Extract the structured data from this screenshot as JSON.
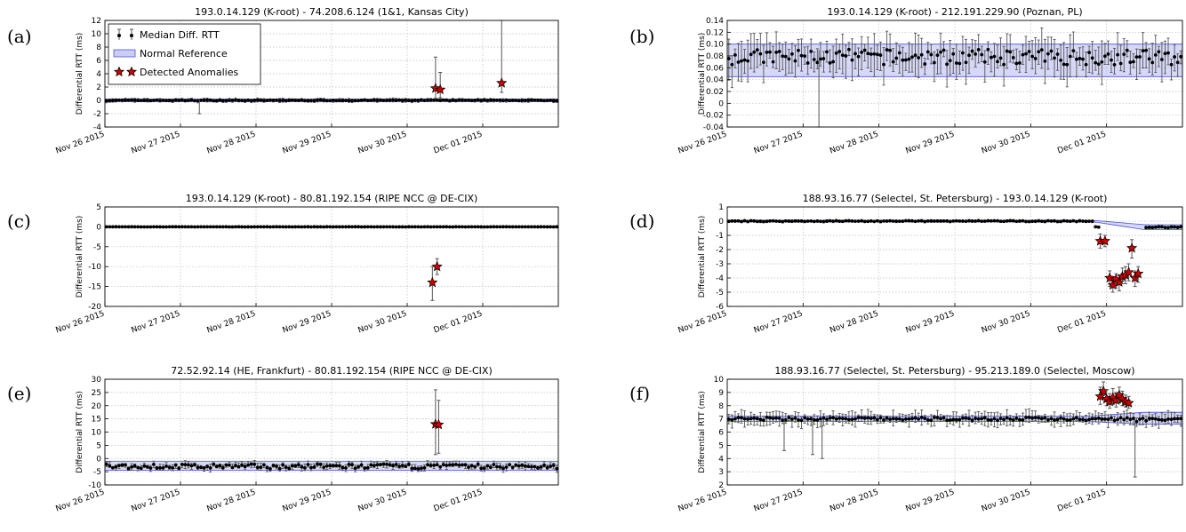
{
  "x_ticks": [
    "Nov 26 2015",
    "Nov 27 2015",
    "Nov 28 2015",
    "Nov 29 2015",
    "Nov 30 2015",
    "Dec 01 2015"
  ],
  "legend": {
    "median": "Median Diff. RTT",
    "reference": "Normal Reference",
    "anomalies": "Detected Anomalies"
  },
  "colors": {
    "band_fill": "#b5b8ee",
    "band_line": "#4d55d6",
    "anomaly": "#cc0000",
    "median": "#000000"
  },
  "chart_data": [
    {
      "panel": "(a)",
      "type": "scatter",
      "title": "193.0.14.129 (K-root) - 74.208.6.124 (1&1, Kansas City)",
      "ylabel": "Differential RTT (ms)",
      "ylim": [
        -4,
        12
      ],
      "yticks": [
        -4,
        -2,
        0,
        2,
        4,
        6,
        8,
        10,
        12
      ],
      "x_range": [
        "2015-11-26T00:00",
        "2015-12-02T00:00"
      ],
      "grid": true,
      "legend": "top-left",
      "baseline": {
        "level": 0,
        "jitter": 0.06
      },
      "reference_band": {
        "lower": -0.2,
        "upper": 0.2
      },
      "error_bar_scale": 0.25,
      "outlier_error_bars": [
        {
          "time": "2015-11-27T06:00",
          "low": -2.0,
          "high": 0.1
        }
      ],
      "anomalies": [
        {
          "time": "2015-11-30T09:00",
          "value": 1.8,
          "low": 0.3,
          "high": 6.5
        },
        {
          "time": "2015-11-30T10:30",
          "value": 1.6,
          "low": 0.4,
          "high": 4.2
        },
        {
          "time": "2015-12-01T06:00",
          "value": 2.6,
          "low": 1.2,
          "high": 12.0
        }
      ]
    },
    {
      "panel": "(b)",
      "type": "scatter",
      "title": "193.0.14.129 (K-root) - 212.191.229.90 (Poznan, PL)",
      "ylabel": "Differential RTT (ms)",
      "ylim": [
        -0.04,
        0.14
      ],
      "yticks": [
        -0.04,
        -0.02,
        0,
        0.02,
        0.04,
        0.06,
        0.08,
        0.1,
        0.12,
        0.14
      ],
      "x_range": [
        "2015-11-26T00:00",
        "2015-12-02T00:00"
      ],
      "grid": true,
      "baseline": {
        "level": 0.078,
        "jitter": 0.013
      },
      "reference_band": {
        "lower": 0.045,
        "upper": 0.1
      },
      "error_bar_scale": 0.03,
      "outlier_error_bars": [
        {
          "time": "2015-11-27T05:00",
          "low": -0.04,
          "high": 0.09
        }
      ],
      "anomalies": []
    },
    {
      "panel": "(c)",
      "type": "scatter",
      "title": "193.0.14.129 (K-root) - 80.81.192.154 (RIPE NCC @ DE-CIX)",
      "ylabel": "Differential RTT (ms)",
      "ylim": [
        -20,
        5
      ],
      "yticks": [
        -20,
        -15,
        -10,
        -5,
        0,
        5
      ],
      "x_range": [
        "2015-11-26T00:00",
        "2015-12-02T00:00"
      ],
      "grid": true,
      "baseline": {
        "level": 0,
        "jitter": 0.02
      },
      "reference_band": {
        "lower": -0.15,
        "upper": 0.15
      },
      "error_bar_scale": 0.0,
      "outlier_error_bars": [],
      "anomalies": [
        {
          "time": "2015-11-30T08:00",
          "value": -14.0,
          "low": -18.5,
          "high": -10.0
        },
        {
          "time": "2015-11-30T09:30",
          "value": -10.0,
          "low": -12.0,
          "high": -8.0
        }
      ]
    },
    {
      "panel": "(d)",
      "type": "scatter",
      "title": "188.93.16.77 (Selectel, St. Petersburg) - 193.0.14.129 (K-root)",
      "ylabel": "Differential RTT (ms)",
      "ylim": [
        -6,
        1
      ],
      "yticks": [
        -6,
        -5,
        -4,
        -3,
        -2,
        -1,
        0,
        1
      ],
      "x_range": [
        "2015-11-26T00:00",
        "2015-12-02T00:00"
      ],
      "grid": true,
      "baseline": {
        "level": 0,
        "jitter": 0.03
      },
      "baseline_gap": [
        "2015-11-30T22:00",
        "2015-12-01T12:00"
      ],
      "reference_band": {
        "lower": -0.05,
        "upper": 0.05,
        "drift_start": "2015-11-30T20:00",
        "drift_end": "2015-12-01T12:00",
        "drift_lower": -0.6,
        "drift_upper": -0.25
      },
      "error_bar_scale": 0.08,
      "outlier_error_bars": [],
      "anomalies": [
        {
          "time": "2015-11-30T22:00",
          "value": -1.4,
          "low": -1.9,
          "high": -0.9
        },
        {
          "time": "2015-11-30T23:30",
          "value": -1.4,
          "low": -1.8,
          "high": -1.0
        },
        {
          "time": "2015-12-01T01:00",
          "value": -4.0,
          "low": -4.6,
          "high": -3.5
        },
        {
          "time": "2015-12-01T02:00",
          "value": -4.5,
          "low": -5.0,
          "high": -4.0
        },
        {
          "time": "2015-12-01T03:00",
          "value": -4.1,
          "low": -4.7,
          "high": -3.7
        },
        {
          "time": "2015-12-01T04:00",
          "value": -4.3,
          "low": -4.9,
          "high": -3.8
        },
        {
          "time": "2015-12-01T05:00",
          "value": -3.9,
          "low": -4.4,
          "high": -3.3
        },
        {
          "time": "2015-12-01T06:00",
          "value": -3.8,
          "low": -4.4,
          "high": -3.2
        },
        {
          "time": "2015-12-01T07:00",
          "value": -3.6,
          "low": -4.2,
          "high": -3.0
        },
        {
          "time": "2015-12-01T08:00",
          "value": -1.9,
          "low": -2.6,
          "high": -1.3
        },
        {
          "time": "2015-12-01T09:00",
          "value": -4.0,
          "low": -4.6,
          "high": -3.5
        },
        {
          "time": "2015-12-01T10:00",
          "value": -3.7,
          "low": -4.3,
          "high": -3.2
        }
      ]
    },
    {
      "panel": "(e)",
      "type": "scatter",
      "title": "72.52.92.14 (HE, Frankfurt) - 80.81.192.154 (RIPE NCC @ DE-CIX)",
      "ylabel": "Differential RTT (ms)",
      "ylim": [
        -10,
        30
      ],
      "yticks": [
        -10,
        -5,
        0,
        5,
        10,
        15,
        20,
        25,
        30
      ],
      "x_range": [
        "2015-11-26T00:00",
        "2015-12-02T00:00"
      ],
      "grid": true,
      "baseline": {
        "level": -3,
        "jitter": 0.9
      },
      "reference_band": {
        "lower": -4.5,
        "upper": -1.0
      },
      "error_bar_scale": 1.2,
      "outlier_error_bars": [],
      "anomalies": [
        {
          "time": "2015-11-30T09:00",
          "value": 13.0,
          "low": 1.5,
          "high": 26.0
        },
        {
          "time": "2015-11-30T10:00",
          "value": 12.8,
          "low": 2.0,
          "high": 22.0
        }
      ]
    },
    {
      "panel": "(f)",
      "type": "scatter",
      "title": "188.93.16.77 (Selectel, St. Petersburg) - 95.213.189.0 (Selectel, Moscow)",
      "ylabel": "Differential RTT (ms)",
      "ylim": [
        2,
        10
      ],
      "yticks": [
        2,
        3,
        4,
        5,
        6,
        7,
        8,
        9,
        10
      ],
      "x_range": [
        "2015-11-26T00:00",
        "2015-12-02T00:00"
      ],
      "grid": true,
      "baseline": {
        "level": 7.0,
        "jitter": 0.12
      },
      "reference_band": {
        "lower": 6.8,
        "upper": 7.2,
        "drift_start": "2015-11-30T18:00",
        "drift_end": "2015-12-01T12:00",
        "drift_lower": 6.6,
        "drift_upper": 7.5
      },
      "error_bar_scale": 0.5,
      "outlier_error_bars": [
        {
          "time": "2015-11-26T18:00",
          "low": 4.6,
          "high": 7.1
        },
        {
          "time": "2015-11-27T03:00",
          "low": 4.3,
          "high": 7.1
        },
        {
          "time": "2015-11-27T06:00",
          "low": 4.0,
          "high": 7.1
        },
        {
          "time": "2015-12-01T09:00",
          "low": 2.6,
          "high": 7.0
        }
      ],
      "anomalies": [
        {
          "time": "2015-11-30T22:00",
          "value": 8.7,
          "low": 8.1,
          "high": 9.4
        },
        {
          "time": "2015-11-30T23:00",
          "value": 9.1,
          "low": 8.6,
          "high": 9.8
        },
        {
          "time": "2015-12-01T00:00",
          "value": 8.5,
          "low": 8.0,
          "high": 9.2
        },
        {
          "time": "2015-12-01T01:00",
          "value": 8.3,
          "low": 7.8,
          "high": 8.9
        },
        {
          "time": "2015-12-01T02:00",
          "value": 8.6,
          "low": 8.1,
          "high": 9.3
        },
        {
          "time": "2015-12-01T03:00",
          "value": 8.4,
          "low": 7.9,
          "high": 9.0
        },
        {
          "time": "2015-12-01T04:00",
          "value": 8.8,
          "low": 8.2,
          "high": 9.4
        },
        {
          "time": "2015-12-01T05:00",
          "value": 8.5,
          "low": 8.0,
          "high": 9.1
        },
        {
          "time": "2015-12-01T06:00",
          "value": 8.3,
          "low": 7.9,
          "high": 8.8
        },
        {
          "time": "2015-12-01T07:00",
          "value": 8.2,
          "low": 7.8,
          "high": 8.7
        }
      ]
    }
  ]
}
